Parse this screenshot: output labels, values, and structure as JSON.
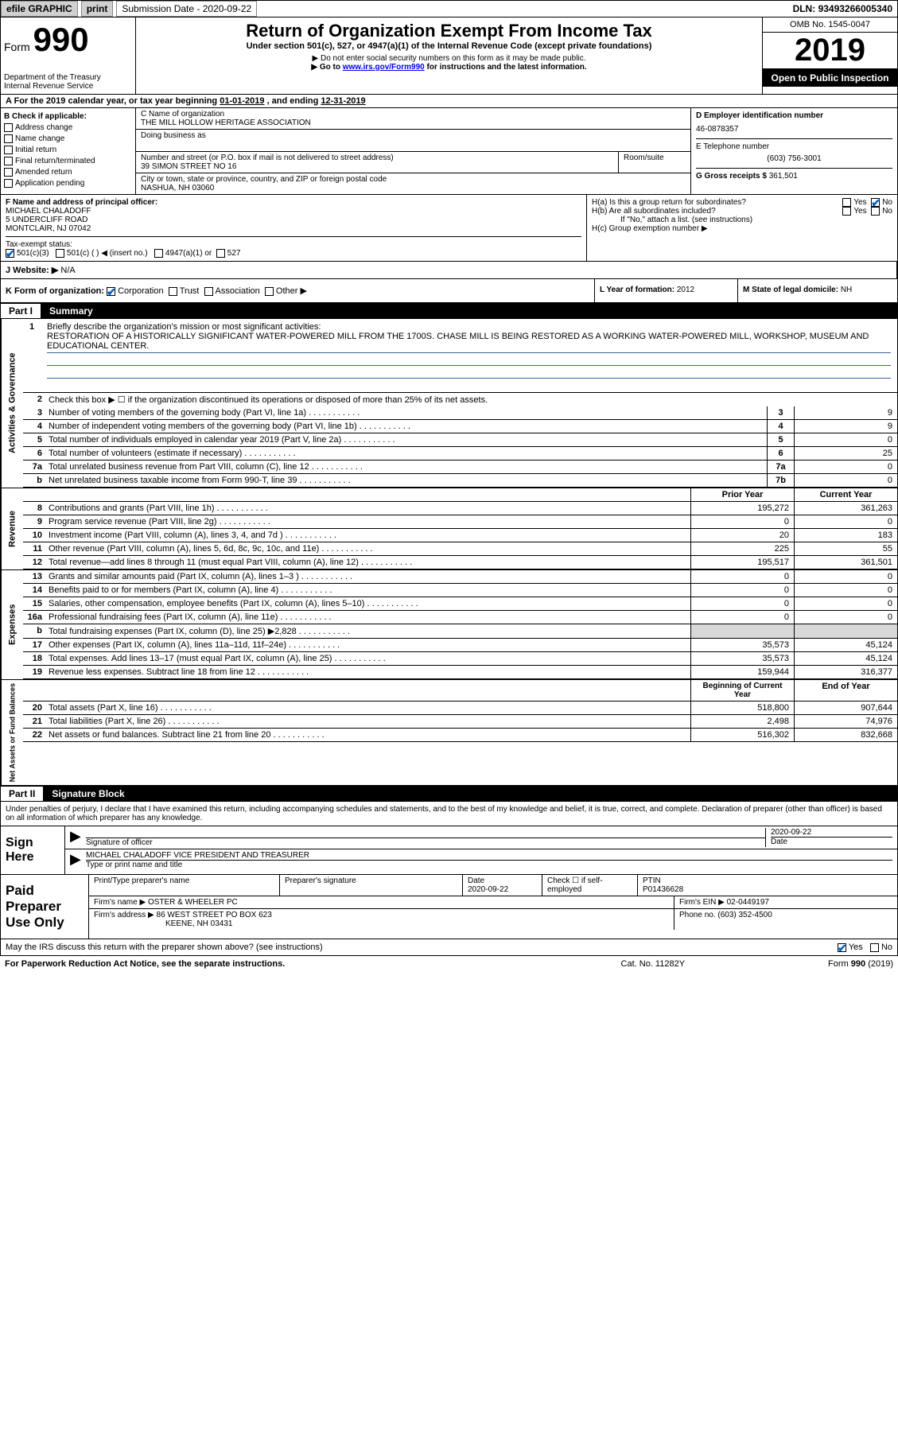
{
  "topbar": {
    "efile": "efile GRAPHIC",
    "print": "print",
    "sub_label": "Submission Date - ",
    "sub_date": "2020-09-22",
    "dln_label": "DLN: ",
    "dln": "93493266005340"
  },
  "header": {
    "form": "Form",
    "num": "990",
    "dept": "Department of the Treasury\nInternal Revenue Service",
    "title": "Return of Organization Exempt From Income Tax",
    "under": "Under section 501(c), 527, or 4947(a)(1) of the Internal Revenue Code (except private foundations)",
    "arrow1": "▶ Do not enter social security numbers on this form as it may be made public.",
    "arrow2_pre": "▶ Go to ",
    "arrow2_link": "www.irs.gov/Form990",
    "arrow2_post": " for instructions and the latest information.",
    "omb": "OMB No. 1545-0047",
    "year": "2019",
    "open": "Open to Public Inspection"
  },
  "period": {
    "text_a": "A For the 2019 calendar year, or tax year beginning ",
    "date1": "01-01-2019",
    "mid": " , and ending ",
    "date2": "12-31-2019"
  },
  "boxB": {
    "title": "B Check if applicable:",
    "items": [
      "Address change",
      "Name change",
      "Initial return",
      "Final return/terminated",
      "Amended return",
      "Application pending"
    ]
  },
  "boxC": {
    "labelC": "C Name of organization",
    "org": "THE MILL HOLLOW HERITAGE ASSOCIATION",
    "dba": "Doing business as",
    "num_label": "Number and street (or P.O. box if mail is not delivered to street address)",
    "room": "Room/suite",
    "street": "39 SIMON STREET NO 16",
    "city_label": "City or town, state or province, country, and ZIP or foreign postal code",
    "city": "NASHUA, NH  03060"
  },
  "boxD": {
    "labelD": "D Employer identification number",
    "ein": "46-0878357",
    "labelE": "E Telephone number",
    "phone": "(603) 756-3001",
    "labelG": "G Gross receipts $ ",
    "gross": "361,501"
  },
  "boxF": {
    "label": "F Name and address of principal officer:",
    "name": "MICHAEL CHALADOFF",
    "addr1": "5 UNDERCLIFF ROAD",
    "addr2": "MONTCLAIR, NJ  07042"
  },
  "boxH": {
    "Ha": "H(a)  Is this a group return for subordinates?",
    "Hb": "H(b)  Are all subordinates included?",
    "Hb_note": "If \"No,\" attach a list. (see instructions)",
    "Hc": "H(c)  Group exemption number ▶",
    "yes": "Yes",
    "no": "No"
  },
  "taxI": {
    "label": "Tax-exempt status:",
    "c1": "501(c)(3)",
    "c2": "501(c) (  ) ◀ (insert no.)",
    "c3": "4947(a)(1) or",
    "c4": "527"
  },
  "boxJ": {
    "label": "J  Website: ▶",
    "val": "N/A"
  },
  "boxK": {
    "label": "K Form of organization:",
    "o1": "Corporation",
    "o2": "Trust",
    "o3": "Association",
    "o4": "Other ▶"
  },
  "boxL": {
    "label": "L Year of formation: ",
    "val": "2012"
  },
  "boxM": {
    "label": "M State of legal domicile: ",
    "val": "NH"
  },
  "part1": {
    "num": "Part I",
    "title": "Summary"
  },
  "part2": {
    "num": "Part II",
    "title": "Signature Block"
  },
  "vtabs": {
    "act": "Activities & Governance",
    "rev": "Revenue",
    "exp": "Expenses",
    "net": "Net Assets or Fund Balances"
  },
  "line1": {
    "num": "1",
    "label": "Briefly describe the organization's mission or most significant activities:",
    "text": "RESTORATION OF A HISTORICALLY SIGNIFICANT WATER-POWERED MILL FROM THE 1700S. CHASE MILL IS BEING RESTORED AS A WORKING WATER-POWERED MILL, WORKSHOP, MUSEUM AND EDUCATIONAL CENTER."
  },
  "line2": {
    "num": "2",
    "text": "Check this box ▶ ☐ if the organization discontinued its operations or disposed of more than 25% of its net assets."
  },
  "gov_rows": [
    {
      "num": "3",
      "desc": "Number of voting members of the governing body (Part VI, line 1a)",
      "cell": "3",
      "val": "9"
    },
    {
      "num": "4",
      "desc": "Number of independent voting members of the governing body (Part VI, line 1b)",
      "cell": "4",
      "val": "9"
    },
    {
      "num": "5",
      "desc": "Total number of individuals employed in calendar year 2019 (Part V, line 2a)",
      "cell": "5",
      "val": "0"
    },
    {
      "num": "6",
      "desc": "Total number of volunteers (estimate if necessary)",
      "cell": "6",
      "val": "25"
    },
    {
      "num": "7a",
      "desc": "Total unrelated business revenue from Part VIII, column (C), line 12",
      "cell": "7a",
      "val": "0"
    },
    {
      "num": "b",
      "desc": "Net unrelated business taxable income from Form 990-T, line 39",
      "cell": "7b",
      "val": "0"
    }
  ],
  "col_head": {
    "prior": "Prior Year",
    "curr": "Current Year"
  },
  "rev_rows": [
    {
      "num": "8",
      "desc": "Contributions and grants (Part VIII, line 1h)",
      "prior": "195,272",
      "curr": "361,263"
    },
    {
      "num": "9",
      "desc": "Program service revenue (Part VIII, line 2g)",
      "prior": "0",
      "curr": "0"
    },
    {
      "num": "10",
      "desc": "Investment income (Part VIII, column (A), lines 3, 4, and 7d )",
      "prior": "20",
      "curr": "183"
    },
    {
      "num": "11",
      "desc": "Other revenue (Part VIII, column (A), lines 5, 6d, 8c, 9c, 10c, and 11e)",
      "prior": "225",
      "curr": "55"
    },
    {
      "num": "12",
      "desc": "Total revenue—add lines 8 through 11 (must equal Part VIII, column (A), line 12)",
      "prior": "195,517",
      "curr": "361,501"
    }
  ],
  "exp_rows": [
    {
      "num": "13",
      "desc": "Grants and similar amounts paid (Part IX, column (A), lines 1–3 )",
      "prior": "0",
      "curr": "0"
    },
    {
      "num": "14",
      "desc": "Benefits paid to or for members (Part IX, column (A), line 4)",
      "prior": "0",
      "curr": "0"
    },
    {
      "num": "15",
      "desc": "Salaries, other compensation, employee benefits (Part IX, column (A), lines 5–10)",
      "prior": "0",
      "curr": "0"
    },
    {
      "num": "16a",
      "desc": "Professional fundraising fees (Part IX, column (A), line 11e)",
      "prior": "0",
      "curr": "0"
    },
    {
      "num": "b",
      "desc": "Total fundraising expenses (Part IX, column (D), line 25) ▶2,828",
      "prior": "",
      "curr": "",
      "grey": true
    },
    {
      "num": "17",
      "desc": "Other expenses (Part IX, column (A), lines 11a–11d, 11f–24e)",
      "prior": "35,573",
      "curr": "45,124"
    },
    {
      "num": "18",
      "desc": "Total expenses. Add lines 13–17 (must equal Part IX, column (A), line 25)",
      "prior": "35,573",
      "curr": "45,124"
    },
    {
      "num": "19",
      "desc": "Revenue less expenses. Subtract line 18 from line 12",
      "prior": "159,944",
      "curr": "316,377"
    }
  ],
  "net_head": {
    "beg": "Beginning of Current Year",
    "end": "End of Year"
  },
  "net_rows": [
    {
      "num": "20",
      "desc": "Total assets (Part X, line 16)",
      "prior": "518,800",
      "curr": "907,644"
    },
    {
      "num": "21",
      "desc": "Total liabilities (Part X, line 26)",
      "prior": "2,498",
      "curr": "74,976"
    },
    {
      "num": "22",
      "desc": "Net assets or fund balances. Subtract line 21 from line 20",
      "prior": "516,302",
      "curr": "832,668"
    }
  ],
  "penalties": "Under penalties of perjury, I declare that I have examined this return, including accompanying schedules and statements, and to the best of my knowledge and belief, it is true, correct, and complete. Declaration of preparer (other than officer) is based on all information of which preparer has any knowledge.",
  "sign": {
    "label": "Sign Here",
    "sig_of": "Signature of officer",
    "date_label": "Date",
    "date": "2020-09-22",
    "name": "MICHAEL CHALADOFF  VICE PRESIDENT AND TREASURER",
    "type_label": "Type or print name and title"
  },
  "prep": {
    "label": "Paid Preparer Use Only",
    "p_name": "Print/Type preparer's name",
    "p_sig": "Preparer's signature",
    "p_date_lab": "Date",
    "p_date": "2020-09-22",
    "p_check": "Check ☐ if self-employed",
    "ptin_lab": "PTIN",
    "ptin": "P01436628",
    "firm_name_lab": "Firm's name   ▶ ",
    "firm_name": "OSTER & WHEELER PC",
    "firm_ein_lab": "Firm's EIN ▶ ",
    "firm_ein": "02-0449197",
    "firm_addr_lab": "Firm's address ▶ ",
    "firm_addr": "86 WEST STREET PO BOX 623",
    "firm_city": "KEENE, NH  03431",
    "phone_lab": "Phone no. ",
    "phone": "(603) 352-4500"
  },
  "discuss": {
    "q": "May the IRS discuss this return with the preparer shown above? (see instructions)",
    "yes": "Yes",
    "no": "No"
  },
  "footer": {
    "left": "For Paperwork Reduction Act Notice, see the separate instructions.",
    "center": "Cat. No. 11282Y",
    "right_a": "Form ",
    "right_b": "990",
    "right_c": " (2019)"
  }
}
